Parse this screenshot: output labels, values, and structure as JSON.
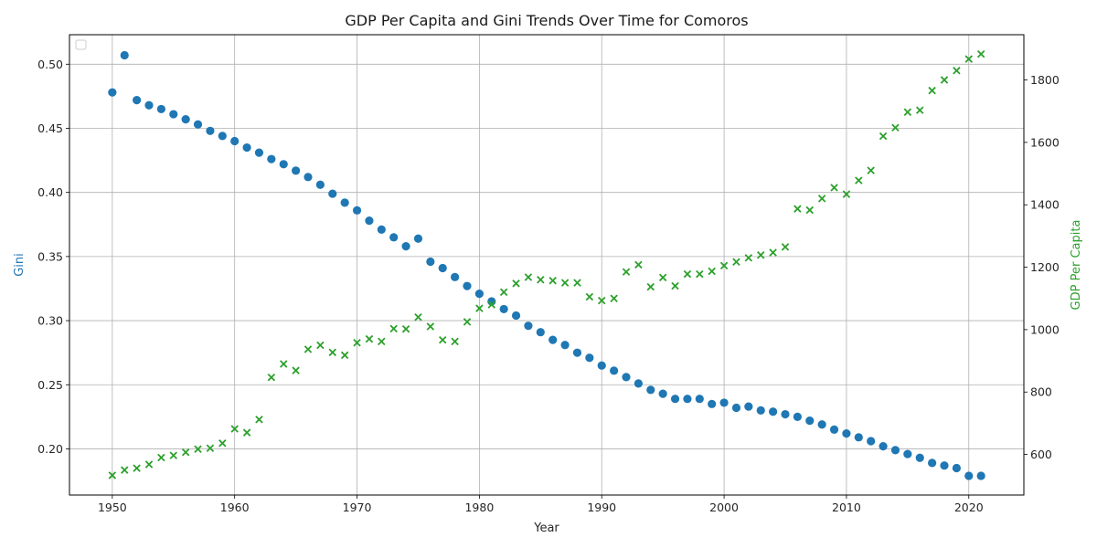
{
  "chart_data": {
    "type": "scatter",
    "title": "GDP Per Capita and Gini Trends Over Time for Comoros",
    "xlabel": "Year",
    "ylabel_left": "Gini",
    "ylabel_right": "GDP Per Capita",
    "xlim": [
      1946.5,
      2024.5
    ],
    "xticks": [
      1950,
      1960,
      1970,
      1980,
      1990,
      2000,
      2010,
      2020
    ],
    "ylim_left": [
      0.164,
      0.523
    ],
    "yticks_left": [
      "0.20",
      "0.25",
      "0.30",
      "0.35",
      "0.40",
      "0.45",
      "0.50"
    ],
    "ylim_right": [
      470,
      1945
    ],
    "yticks_right": [
      600,
      800,
      1000,
      1200,
      1400,
      1600,
      1800
    ],
    "grid": true,
    "legend": "upper-left (empty)",
    "series": [
      {
        "axis": "left",
        "marker": "circle",
        "color": "#1f77b4",
        "x": [
          1950,
          1951,
          1952,
          1953,
          1954,
          1955,
          1956,
          1957,
          1958,
          1959,
          1960,
          1961,
          1962,
          1963,
          1964,
          1965,
          1966,
          1967,
          1968,
          1969,
          1970,
          1971,
          1972,
          1973,
          1974,
          1975,
          1976,
          1977,
          1978,
          1979,
          1980,
          1981,
          1982,
          1983,
          1984,
          1985,
          1986,
          1987,
          1988,
          1989,
          1990,
          1991,
          1992,
          1993,
          1994,
          1995,
          1996,
          1997,
          1998,
          1999,
          2000,
          2001,
          2002,
          2003,
          2004,
          2005,
          2006,
          2007,
          2008,
          2009,
          2010,
          2011,
          2012,
          2013,
          2014,
          2015,
          2016,
          2017,
          2018,
          2019,
          2020,
          2021
        ],
        "values": [
          0.478,
          0.507,
          0.472,
          0.468,
          0.465,
          0.461,
          0.457,
          0.453,
          0.448,
          0.444,
          0.44,
          0.435,
          0.431,
          0.426,
          0.422,
          0.417,
          0.412,
          0.406,
          0.399,
          0.392,
          0.386,
          0.378,
          0.371,
          0.365,
          0.358,
          0.364,
          0.346,
          0.341,
          0.334,
          0.327,
          0.321,
          0.315,
          0.309,
          0.304,
          0.296,
          0.291,
          0.285,
          0.281,
          0.275,
          0.271,
          0.265,
          0.261,
          0.256,
          0.251,
          0.246,
          0.243,
          0.239,
          0.239,
          0.239,
          0.235,
          0.236,
          0.232,
          0.233,
          0.23,
          0.229,
          0.227,
          0.225,
          0.222,
          0.219,
          0.215,
          0.212,
          0.209,
          0.206,
          0.202,
          0.199,
          0.196,
          0.193,
          0.189,
          0.187,
          0.185,
          0.179,
          0.179
        ]
      },
      {
        "axis": "right",
        "marker": "x",
        "color": "#2ca02c",
        "x": [
          1950,
          1951,
          1952,
          1953,
          1954,
          1955,
          1956,
          1957,
          1958,
          1959,
          1960,
          1961,
          1962,
          1963,
          1964,
          1965,
          1966,
          1967,
          1968,
          1969,
          1970,
          1971,
          1972,
          1973,
          1974,
          1975,
          1976,
          1977,
          1978,
          1979,
          1980,
          1981,
          1982,
          1983,
          1984,
          1985,
          1986,
          1987,
          1988,
          1989,
          1990,
          1991,
          1992,
          1993,
          1994,
          1995,
          1996,
          1997,
          1998,
          1999,
          2000,
          2001,
          2002,
          2003,
          2004,
          2005,
          2006,
          2007,
          2008,
          2009,
          2010,
          2011,
          2012,
          2013,
          2014,
          2015,
          2016,
          2017,
          2018,
          2019,
          2020,
          2021
        ],
        "values": [
          533,
          550,
          556,
          568,
          590,
          597,
          607,
          617,
          620,
          636,
          682,
          670,
          712,
          847,
          890,
          869,
          937,
          950,
          927,
          918,
          958,
          970,
          962,
          1003,
          1002,
          1040,
          1010,
          967,
          962,
          1025,
          1068,
          1080,
          1120,
          1148,
          1168,
          1160,
          1157,
          1150,
          1150,
          1105,
          1093,
          1100,
          1185,
          1208,
          1137,
          1167,
          1140,
          1178,
          1178,
          1187,
          1205,
          1217,
          1230,
          1239,
          1247,
          1265,
          1387,
          1383,
          1420,
          1455,
          1434,
          1478,
          1510,
          1620,
          1647,
          1697,
          1703,
          1766,
          1800,
          1830,
          1867,
          1883
        ]
      }
    ]
  }
}
